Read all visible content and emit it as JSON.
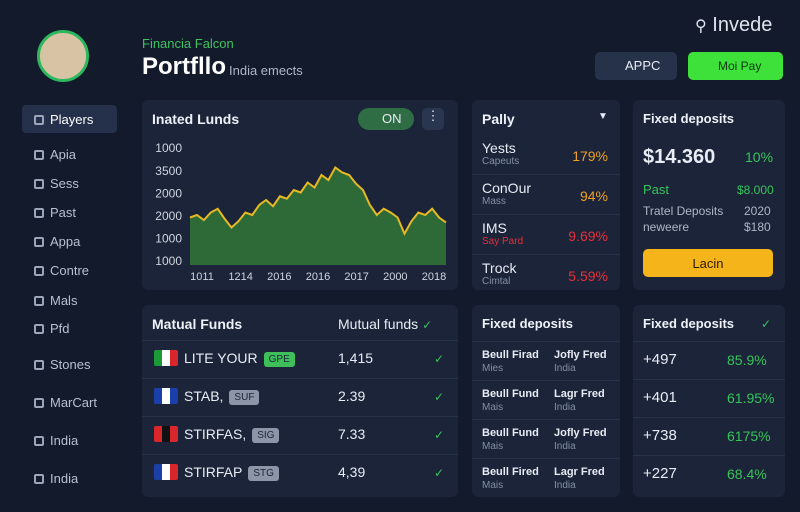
{
  "header": {
    "subtitle": "Financia Falcon",
    "title": "Portfllo",
    "tagline": "India emects",
    "search": "Invede",
    "button_1": "APPC",
    "button_2": "Moi Pay"
  },
  "sidebar": {
    "items": [
      "Players",
      "Apia",
      "Sess",
      "Past",
      "Appa",
      "Contre",
      "Mals",
      "Pfd",
      "Stones",
      "MarCart",
      "India",
      "India"
    ]
  },
  "chart_data": {
    "type": "area",
    "title": "Inated Lunds",
    "toggle": "ON",
    "color": "#e8b923",
    "fill": "#2e6a38",
    "y_labels": [
      "1000",
      "3500",
      "2000",
      "2000",
      "1000",
      "1000"
    ],
    "x_labels": [
      "1011",
      "1214",
      "2016",
      "2016",
      "2017",
      "2000",
      "2018"
    ],
    "ylim": [
      0,
      100
    ],
    "values": [
      38,
      40,
      36,
      42,
      45,
      37,
      30,
      35,
      42,
      40,
      48,
      52,
      47,
      55,
      53,
      60,
      58,
      66,
      62,
      72,
      68,
      78,
      74,
      72,
      65,
      60,
      48,
      40,
      45,
      42,
      38,
      25,
      35,
      42,
      40,
      45,
      38,
      34
    ]
  },
  "pally": {
    "title": "Pally",
    "rows": [
      {
        "name": "Yests",
        "sub": "Capeuts",
        "value": "179%",
        "color": "#f0a020"
      },
      {
        "name": "ConOur",
        "sub": "Mass",
        "value": "94%",
        "color": "#f0a020"
      },
      {
        "name": "IMS",
        "sub": "Say Pard",
        "value": "9.69%",
        "color": "#e8303a"
      },
      {
        "name": "Trock",
        "sub": "Cimtal",
        "value": "5.59%",
        "color": "#e8303a"
      }
    ]
  },
  "fixed_top": {
    "title": "Fixed deposits",
    "amount": "$14.360",
    "change": "10%",
    "past_label": "Past",
    "past_value": "$8.000",
    "row1_label": "Tratel Deposits",
    "row1_value": "2020",
    "row2_label": "neweere",
    "row2_value": "$180",
    "button": "Lacin"
  },
  "mutual": {
    "title": "Matual Funds",
    "filter": "Mutual funds",
    "rows": [
      {
        "name": "LITE YOUR",
        "badge": "GPE",
        "value": "1,415"
      },
      {
        "name": "STAB,",
        "badge": "SUF",
        "value": "2.39"
      },
      {
        "name": "STIRFAS,",
        "badge": "SIG",
        "value": "7.33"
      },
      {
        "name": "STIRFAP",
        "badge": "STG",
        "value": "4,39"
      }
    ]
  },
  "fixed_mid": {
    "title": "Fixed deposits",
    "rows": [
      [
        "Beull Firad",
        "Mies",
        "Jofly Fred",
        "India"
      ],
      [
        "Beull Fund",
        "Mais",
        "Lagr Fred",
        "India"
      ],
      [
        "Beull Fund",
        "Mais",
        "Jofly Fred",
        "India"
      ],
      [
        "Beull Fired",
        "Mais",
        "Lagr Fred",
        "India"
      ]
    ]
  },
  "fixed_right": {
    "title": "Fixed deposits",
    "rows": [
      [
        "+497",
        "85.9%"
      ],
      [
        "+401",
        "61.95%"
      ],
      [
        "+738",
        "6175%"
      ],
      [
        "+227",
        "68.4%"
      ]
    ]
  }
}
